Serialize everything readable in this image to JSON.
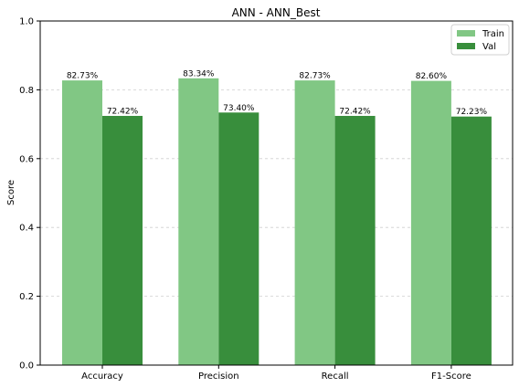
{
  "chart_data": {
    "type": "bar",
    "title": "ANN - ANN_Best",
    "xlabel": "",
    "ylabel": "Score",
    "ylim": [
      0,
      1.0
    ],
    "yticks": [
      "0.0",
      "0.2",
      "0.4",
      "0.6",
      "0.8",
      "1.0"
    ],
    "ytick_values": [
      0,
      0.2,
      0.4,
      0.6,
      0.8,
      1.0
    ],
    "categories": [
      "Accuracy",
      "Precision",
      "Recall",
      "F1-Score"
    ],
    "grid": "horizontal dashed",
    "legend_position": "top-right",
    "series": [
      {
        "name": "Train",
        "color": "#81c784",
        "values": [
          0.8273,
          0.8334,
          0.8273,
          0.826
        ],
        "labels": [
          "82.73%",
          "83.34%",
          "82.73%",
          "82.60%"
        ]
      },
      {
        "name": "Val",
        "color": "#388e3c",
        "values": [
          0.7242,
          0.734,
          0.7242,
          0.7223
        ],
        "labels": [
          "72.42%",
          "73.40%",
          "72.42%",
          "72.23%"
        ]
      }
    ]
  }
}
